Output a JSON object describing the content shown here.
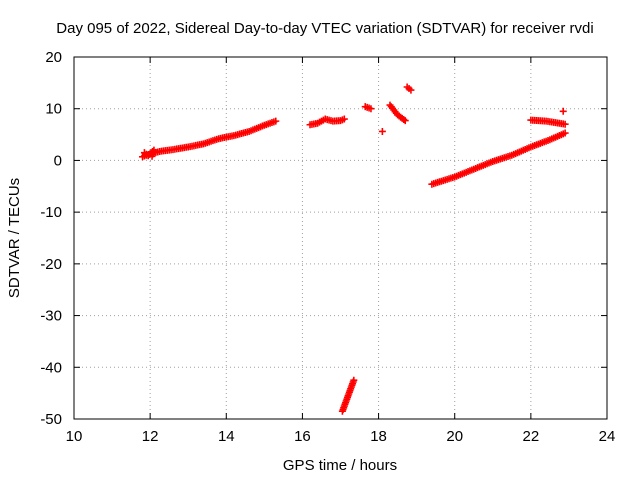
{
  "chart_data": {
    "type": "scatter",
    "title": "Day 095 of 2022, Sidereal Day-to-day VTEC variation (SDTVAR) for receiver rvdi",
    "xlabel": "GPS time / hours",
    "ylabel": "SDTVAR / TECUs",
    "xlim": [
      10,
      24
    ],
    "ylim": [
      -50,
      20
    ],
    "xticks": [
      10,
      12,
      14,
      16,
      18,
      20,
      22,
      24
    ],
    "yticks": [
      -50,
      -40,
      -30,
      -20,
      -10,
      0,
      10,
      20
    ],
    "grid": true,
    "marker": "plus",
    "color": "#ff0000",
    "segments": [
      {
        "name": "arc-1",
        "points": [
          [
            11.8,
            0.7
          ],
          [
            12.0,
            1.3
          ],
          [
            12.3,
            1.8
          ],
          [
            12.6,
            2.1
          ],
          [
            13.0,
            2.6
          ],
          [
            13.4,
            3.2
          ],
          [
            13.8,
            4.2
          ],
          [
            14.2,
            4.8
          ],
          [
            14.6,
            5.6
          ],
          [
            15.0,
            6.8
          ],
          [
            15.3,
            7.6
          ]
        ]
      },
      {
        "name": "arc-1-scatter",
        "points": [
          [
            11.85,
            1.5
          ],
          [
            11.95,
            0.9
          ],
          [
            12.1,
            2.0
          ],
          [
            12.05,
            0.8
          ]
        ]
      },
      {
        "name": "arc-2",
        "points": [
          [
            16.2,
            6.9
          ],
          [
            16.4,
            7.2
          ],
          [
            16.6,
            8.0
          ],
          [
            16.8,
            7.6
          ],
          [
            17.0,
            7.7
          ],
          [
            17.1,
            8.0
          ]
        ]
      },
      {
        "name": "arc-3",
        "points": [
          [
            17.05,
            -48.5
          ],
          [
            17.15,
            -46.5
          ],
          [
            17.25,
            -44.5
          ],
          [
            17.35,
            -42.5
          ]
        ]
      },
      {
        "name": "arc-4",
        "points": [
          [
            17.65,
            10.4
          ],
          [
            17.8,
            10.0
          ]
        ]
      },
      {
        "name": "arc-5",
        "points": [
          [
            18.1,
            5.6
          ]
        ]
      },
      {
        "name": "arc-6",
        "points": [
          [
            18.3,
            10.7
          ],
          [
            18.5,
            8.8
          ],
          [
            18.7,
            7.7
          ]
        ]
      },
      {
        "name": "arc-7",
        "points": [
          [
            18.75,
            14.2
          ],
          [
            18.85,
            13.6
          ]
        ]
      },
      {
        "name": "arc-8",
        "points": [
          [
            19.4,
            -4.6
          ],
          [
            20.0,
            -3.2
          ],
          [
            20.5,
            -1.7
          ],
          [
            21.0,
            -0.2
          ],
          [
            21.5,
            1.0
          ],
          [
            22.0,
            2.6
          ],
          [
            22.5,
            4.0
          ],
          [
            22.9,
            5.3
          ]
        ]
      },
      {
        "name": "arc-9",
        "points": [
          [
            22.0,
            7.8
          ],
          [
            22.4,
            7.6
          ],
          [
            22.9,
            7.0
          ]
        ]
      },
      {
        "name": "arc-10",
        "points": [
          [
            22.85,
            9.5
          ]
        ]
      }
    ]
  }
}
